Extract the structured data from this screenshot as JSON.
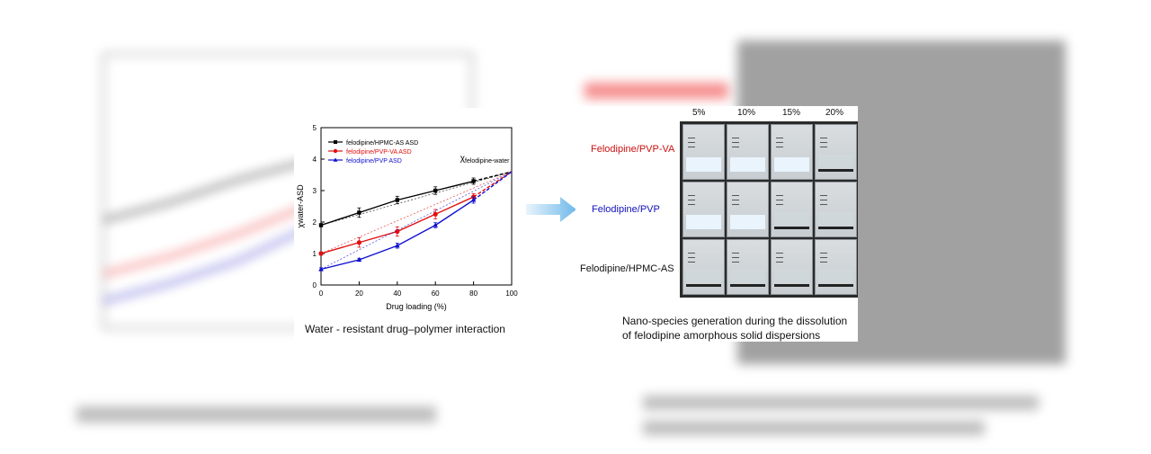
{
  "chart_data": {
    "type": "line",
    "xlabel": "Drug loading (%)",
    "ylabel": "χwater-ASD",
    "xlim": [
      0,
      100
    ],
    "ylim": [
      0,
      5
    ],
    "xticks": [
      0,
      20,
      40,
      60,
      80,
      100
    ],
    "yticks": [
      0,
      1,
      2,
      3,
      4,
      5
    ],
    "legend_placement": "top-left",
    "series": [
      {
        "name": "felodipine/HPMC-AS ASD",
        "color": "#000000",
        "marker": "square",
        "x": [
          0,
          20,
          40,
          60,
          80
        ],
        "y": [
          1.9,
          2.3,
          2.7,
          3.0,
          3.3
        ],
        "err": [
          0.05,
          0.15,
          0.12,
          0.12,
          0.1
        ]
      },
      {
        "name": "felodipine/PVP-VA ASD",
        "color": "#e01010",
        "marker": "circle",
        "x": [
          0,
          20,
          40,
          60,
          80
        ],
        "y": [
          1.0,
          1.35,
          1.7,
          2.25,
          2.8
        ],
        "err": [
          0.05,
          0.15,
          0.15,
          0.15,
          0.1
        ]
      },
      {
        "name": "felodipine/PVP ASD",
        "color": "#1010d0",
        "marker": "triangle",
        "x": [
          0,
          20,
          40,
          60,
          80
        ],
        "y": [
          0.5,
          0.8,
          1.25,
          1.9,
          2.7
        ],
        "err": [
          0.05,
          0.05,
          0.08,
          0.08,
          0.1
        ]
      }
    ],
    "dashed_extensions": {
      "end_x": 100,
      "end_y": 3.6
    },
    "ideal_lines": {
      "end_x": 100,
      "end_y": 3.6
    },
    "annotation": {
      "main": "χ",
      "sub": "felodipine-water"
    }
  },
  "chart_caption": "Water - resistant drug–polymer interaction",
  "photo": {
    "columns": [
      "5%",
      "10%",
      "15%",
      "20%"
    ],
    "rows": [
      {
        "label": "Felodipine/PVP-VA",
        "color": "#cc1111"
      },
      {
        "label": "Felodipine/PVP",
        "color": "#1111bb"
      },
      {
        "label": "Felodipine/HPMC-AS",
        "color": "#111111"
      }
    ],
    "cloudy": [
      [
        true,
        true,
        true,
        false
      ],
      [
        true,
        true,
        false,
        false
      ],
      [
        false,
        false,
        false,
        false
      ]
    ],
    "caption_line1": "Nano-species generation during the dissolution",
    "caption_line2": "of felodipine amorphous solid dispersions"
  }
}
